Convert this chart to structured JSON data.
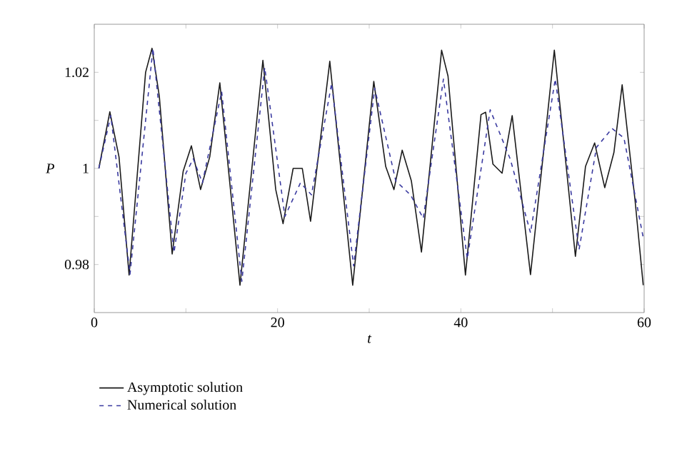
{
  "chart_data": {
    "type": "line",
    "xlabel": "t",
    "ylabel": "P",
    "xlim": [
      0,
      60
    ],
    "ylim": [
      0.97,
      1.03
    ],
    "xticks": [
      0,
      {
        "value": 10,
        "label": null
      },
      20,
      {
        "value": 30,
        "label": null
      },
      40,
      {
        "value": 50,
        "label": null
      },
      60
    ],
    "yticks": [
      0.98,
      {
        "value": 0.99,
        "label": null
      },
      1,
      {
        "value": 1.01,
        "label": null
      },
      1.02
    ],
    "grid": false,
    "legend": "bottom",
    "marker": "none",
    "series": [
      {
        "name": "Asymptotic solution",
        "color": "#1a1a1a",
        "line_style": "solid",
        "x": [
          0.5,
          1.7,
          2.7,
          3.8,
          5.6,
          6.3,
          7.1,
          8.5,
          9.7,
          10.6,
          11.6,
          12.6,
          13.7,
          15.9,
          18.4,
          19.8,
          20.6,
          21.7,
          22.7,
          23.6,
          25.7,
          28.2,
          30.5,
          31.8,
          32.7,
          33.6,
          34.6,
          35.7,
          37.9,
          38.6,
          40.5,
          42.2,
          42.7,
          43.5,
          44.5,
          45.6,
          47.6,
          50.2,
          52.5,
          53.6,
          54.6,
          55.7,
          56.7,
          57.6,
          59.0,
          59.9
        ],
        "values": [
          1.0,
          1.0118,
          1.0024,
          0.9778,
          1.02,
          1.025,
          1.015,
          0.9822,
          0.9994,
          1.0047,
          0.9956,
          1.0024,
          1.0178,
          0.9757,
          1.0225,
          0.9956,
          0.9885,
          1.0,
          1.0,
          0.989,
          1.0223,
          0.9757,
          1.0181,
          1.0004,
          0.9956,
          1.0038,
          0.9974,
          0.9826,
          1.0246,
          1.0192,
          0.9778,
          1.0112,
          1.0117,
          1.0009,
          0.999,
          1.011,
          0.9779,
          1.0246,
          0.9817,
          1.0004,
          1.0053,
          0.996,
          1.0033,
          1.0174,
          0.9935,
          0.9757
        ]
      },
      {
        "name": "Numerical solution",
        "color": "#3a3aa0",
        "line_style": "dashed",
        "x": [
          0.5,
          1.8,
          3.9,
          6.4,
          8.7,
          10.0,
          10.8,
          11.8,
          13.9,
          16.1,
          18.6,
          20.8,
          22.5,
          23.7,
          25.9,
          28.3,
          30.6,
          32.9,
          34.5,
          35.9,
          38.1,
          40.7,
          43.2,
          45.4,
          47.6,
          50.3,
          52.9,
          54.8,
          56.5,
          57.8,
          59.9
        ],
        "values": [
          1.0,
          1.011,
          0.978,
          1.025,
          0.9825,
          0.999,
          1.002,
          0.997,
          1.016,
          0.9765,
          1.021,
          0.99,
          0.997,
          0.9945,
          1.0177,
          0.9797,
          1.0167,
          0.9974,
          0.9945,
          0.9896,
          1.0186,
          0.9812,
          1.0122,
          1.0019,
          0.9866,
          1.0186,
          0.9831,
          1.0044,
          1.0083,
          1.0063,
          0.9856
        ]
      }
    ]
  }
}
